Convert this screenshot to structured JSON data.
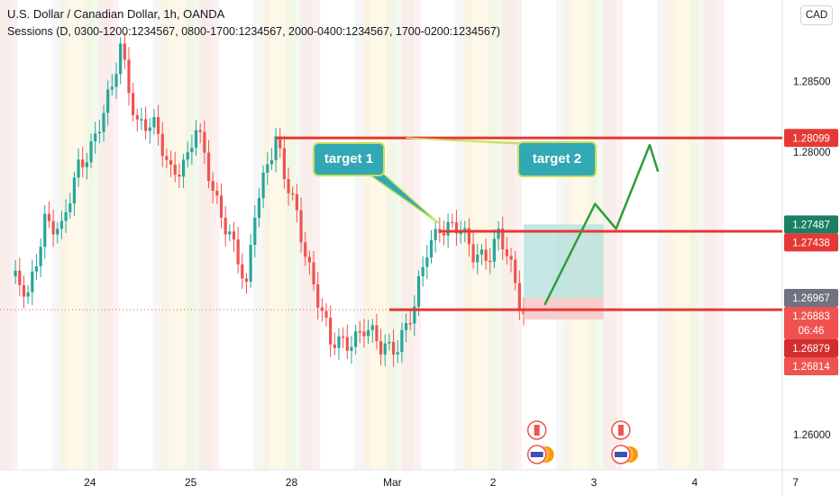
{
  "header": {
    "title": "U.S. Dollar / Canadian Dollar, 1h, OANDA",
    "indicator": "Sessions (D, 0300-1200:1234567, 0800-1700:1234567, 2000-0400:1234567, 1700-0200:1234567)"
  },
  "currency_button": "CAD",
  "annotations": {
    "target1": "target 1",
    "target2": "target 2"
  },
  "colors": {
    "up": "#26a69a",
    "down": "#ef5350",
    "level_line": "#e53935",
    "arrow": "#2e9e3a",
    "callout_fill": "#32a8b4",
    "callout_border": "#c8e05a",
    "profit_zone": "#b2dfdb",
    "loss_zone": "#f8c5c5"
  },
  "chart_data": {
    "type": "candlestick",
    "symbol": "USDCAD",
    "timeframe": "1h",
    "ylim": [
      1.2575,
      1.2905
    ],
    "y_ticks": [
      "1.28500",
      "1.28000",
      "1.26000"
    ],
    "x_ticks": [
      "24",
      "25",
      "28",
      "Mar",
      "2",
      "3",
      "4",
      "7"
    ],
    "x_tick_index": [
      8,
      32,
      56,
      80,
      104,
      128,
      152,
      176
    ],
    "close_path": [
      [
        0,
        1.2712
      ],
      [
        4,
        1.2695
      ],
      [
        8,
        1.2755
      ],
      [
        12,
        1.2742
      ],
      [
        16,
        1.279
      ],
      [
        20,
        1.2812
      ],
      [
        24,
        1.2842
      ],
      [
        26,
        1.2875
      ],
      [
        28,
        1.2848
      ],
      [
        30,
        1.2822
      ],
      [
        34,
        1.2815
      ],
      [
        38,
        1.2788
      ],
      [
        42,
        1.2795
      ],
      [
        44,
        1.2815
      ],
      [
        46,
        1.2795
      ],
      [
        48,
        1.2775
      ],
      [
        52,
        1.2742
      ],
      [
        56,
        1.27
      ],
      [
        58,
        1.276
      ],
      [
        61,
        1.2795
      ],
      [
        63,
        1.2809
      ],
      [
        65,
        1.278
      ],
      [
        68,
        1.2755
      ],
      [
        71,
        1.272
      ],
      [
        74,
        1.2685
      ],
      [
        76,
        1.2662
      ],
      [
        80,
        1.2667
      ],
      [
        84,
        1.2675
      ],
      [
        88,
        1.266
      ],
      [
        92,
        1.2666
      ],
      [
        96,
        1.2688
      ],
      [
        99,
        1.273
      ],
      [
        102,
        1.275
      ],
      [
        106,
        1.2745
      ],
      [
        110,
        1.2728
      ],
      [
        114,
        1.273
      ],
      [
        116,
        1.274
      ],
      [
        118,
        1.2725
      ],
      [
        120,
        1.2705
      ],
      [
        122,
        1.2688
      ]
    ],
    "horizontal_levels": [
      {
        "start_index": 63,
        "price": 1.28099
      },
      {
        "start_index": 102,
        "price": 1.27438
      },
      {
        "start_index": 90,
        "price": 1.26883
      }
    ],
    "position_box": {
      "start_index": 122,
      "end_index": 141,
      "entry": 1.26967,
      "target": 1.27487,
      "stop": 1.26814
    },
    "projection_path": [
      [
        127,
        1.26917
      ],
      [
        139,
        1.27632
      ],
      [
        144,
        1.27456
      ],
      [
        152,
        1.28049
      ],
      [
        154,
        1.2786
      ]
    ],
    "callout_anchors": [
      {
        "index": 102,
        "price": 1.2749
      },
      {
        "index": 94,
        "price": 1.28099
      }
    ],
    "price_badges": [
      {
        "value": "1.28099",
        "price": 1.28099,
        "color": "#e53935"
      },
      {
        "value": "1.27487",
        "price": 1.27487,
        "color": "#1b7f63"
      },
      {
        "value": "1.27438",
        "price": 1.27438,
        "color": "#e53935"
      },
      {
        "value": "1.26967",
        "price": 1.26967,
        "color": "#6f7380"
      },
      {
        "value": "1.26883",
        "price": 1.26883,
        "color": "#f05252",
        "sub": "06:46"
      },
      {
        "value": "1.26879",
        "price": 1.26879,
        "color": "#d32f2f"
      },
      {
        "value": "1.26814",
        "price": 1.26814,
        "color": "#ef5350"
      }
    ],
    "events": [
      {
        "index": 123,
        "flags": [
          "CA",
          "US"
        ]
      },
      {
        "index": 143,
        "flags": [
          "CA",
          "US"
        ]
      }
    ]
  }
}
